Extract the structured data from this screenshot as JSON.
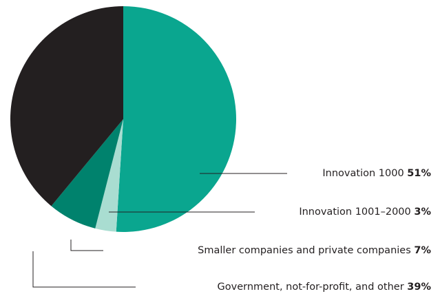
{
  "chart_data": {
    "type": "pie",
    "categories": [
      "Innovation 1000",
      "Innovation 1001–2000",
      "Smaller companies and private companies",
      "Government, not-for-profit, and other"
    ],
    "values": [
      51,
      3,
      7,
      39
    ],
    "value_labels": [
      "51%",
      "3%",
      "7%",
      "39%"
    ],
    "colors": [
      "#0aa68f",
      "#a9ddd1",
      "#00826d",
      "#231f20"
    ]
  }
}
